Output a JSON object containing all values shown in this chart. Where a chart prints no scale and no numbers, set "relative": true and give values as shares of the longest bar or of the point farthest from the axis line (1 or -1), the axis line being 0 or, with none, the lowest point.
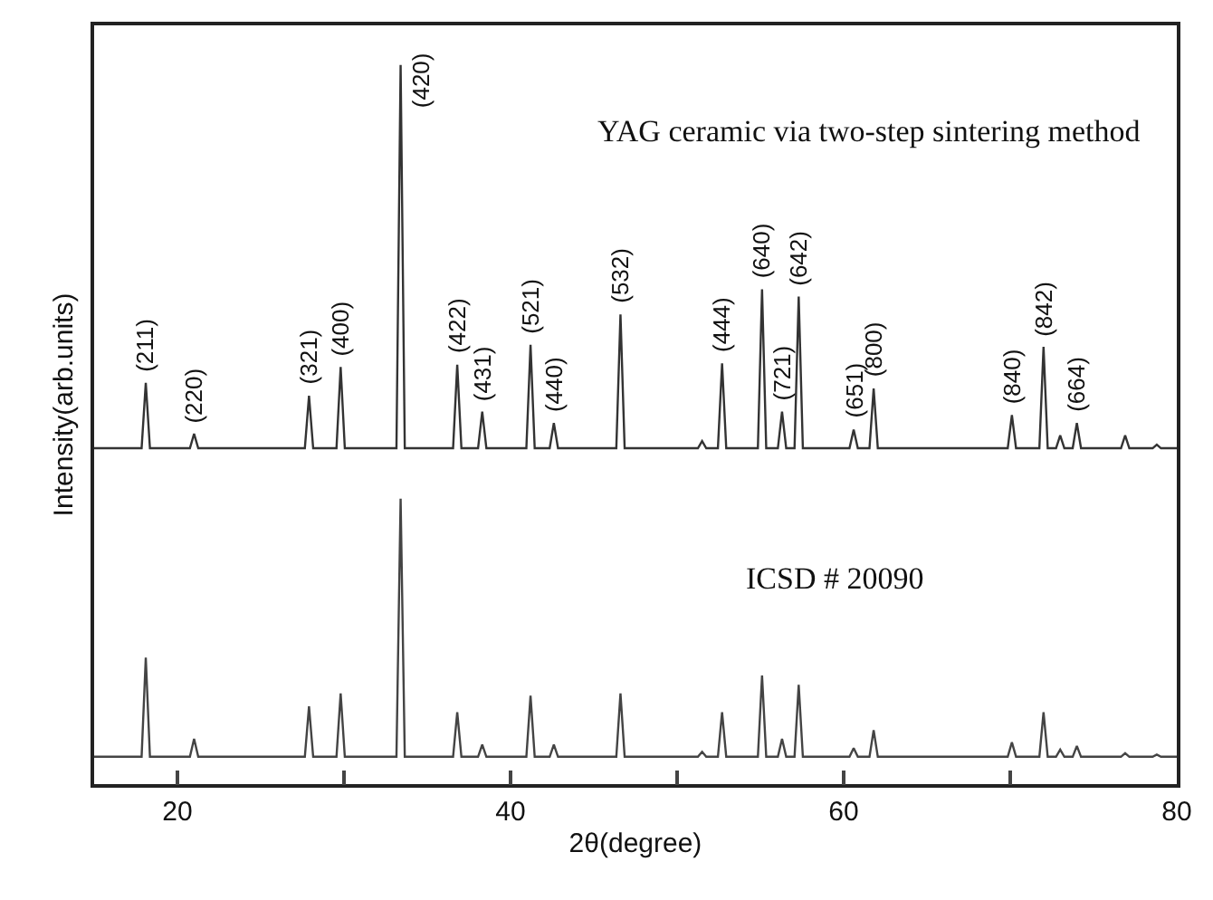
{
  "chart_data": {
    "type": "line",
    "relative": true,
    "xlabel": "2θ(degree)",
    "ylabel": "Intensity(arb.units)",
    "xlim": [
      15,
      80
    ],
    "xticks": [
      20,
      {
        "value": 30,
        "label": null
      },
      40,
      {
        "value": 50,
        "label": null
      },
      60,
      {
        "value": 70,
        "label": null
      },
      80
    ],
    "marker": "none",
    "line_style": "solid",
    "x": [
      15,
      17.85,
      18.1,
      18.35,
      20.75,
      21.0,
      21.25,
      27.65,
      27.9,
      28.15,
      29.55,
      29.8,
      30.05,
      33.15,
      33.4,
      33.65,
      36.55,
      36.8,
      37.05,
      38.05,
      38.3,
      38.55,
      40.95,
      41.2,
      41.45,
      42.35,
      42.6,
      42.85,
      46.35,
      46.6,
      46.85,
      51.25,
      51.5,
      51.75,
      52.45,
      52.7,
      52.95,
      54.85,
      55.1,
      55.35,
      56.05,
      56.3,
      56.55,
      57.05,
      57.3,
      57.55,
      60.35,
      60.6,
      60.85,
      61.55,
      61.8,
      62.05,
      69.85,
      70.1,
      70.35,
      71.75,
      72.0,
      72.25,
      72.75,
      73.0,
      73.25,
      73.75,
      74.0,
      74.25,
      76.65,
      76.9,
      77.15,
      78.55,
      78.8,
      79.05,
      80
    ],
    "series": [
      {
        "color": "#333333",
        "values": [
          0.467,
          0.467,
          0.558,
          0.467,
          0.467,
          0.487,
          0.467,
          0.467,
          0.54,
          0.467,
          0.467,
          0.58,
          0.467,
          0.467,
          1.0,
          0.467,
          0.467,
          0.583,
          0.467,
          0.467,
          0.518,
          0.467,
          0.467,
          0.611,
          0.467,
          0.467,
          0.502,
          0.467,
          0.467,
          0.653,
          0.467,
          0.467,
          0.477,
          0.467,
          0.467,
          0.585,
          0.467,
          0.467,
          0.688,
          0.467,
          0.467,
          0.518,
          0.467,
          0.467,
          0.678,
          0.467,
          0.467,
          0.493,
          0.467,
          0.467,
          0.55,
          0.467,
          0.467,
          0.513,
          0.467,
          0.467,
          0.608,
          0.467,
          0.467,
          0.485,
          0.467,
          0.467,
          0.502,
          0.467,
          0.467,
          0.485,
          0.467,
          0.467,
          0.472,
          0.467,
          0.467
        ]
      },
      {
        "color": "#444444",
        "values": [
          0.038,
          0.038,
          0.176,
          0.038,
          0.038,
          0.063,
          0.038,
          0.038,
          0.108,
          0.038,
          0.038,
          0.126,
          0.038,
          0.038,
          0.397,
          0.038,
          0.038,
          0.1,
          0.038,
          0.038,
          0.055,
          0.038,
          0.038,
          0.123,
          0.038,
          0.038,
          0.055,
          0.038,
          0.038,
          0.126,
          0.038,
          0.038,
          0.045,
          0.038,
          0.038,
          0.1,
          0.038,
          0.038,
          0.151,
          0.038,
          0.038,
          0.063,
          0.038,
          0.038,
          0.138,
          0.038,
          0.038,
          0.05,
          0.038,
          0.038,
          0.075,
          0.038,
          0.038,
          0.058,
          0.038,
          0.038,
          0.1,
          0.038,
          0.038,
          0.048,
          0.038,
          0.038,
          0.053,
          0.038,
          0.038,
          0.043,
          0.038,
          0.038,
          0.041,
          0.038,
          0.038
        ]
      }
    ],
    "annotations": [
      "YAG ceramic via two-step sintering method",
      "ICSD # 20090",
      {
        "text": "(211)",
        "x": 18.1,
        "y": 0.558
      },
      {
        "text": "(220)",
        "x": 21.0,
        "y": 0.487
      },
      {
        "text": "(321)",
        "x": 27.9,
        "y": 0.54
      },
      {
        "text": "(400)",
        "x": 29.8,
        "y": 0.58
      },
      {
        "text": "(420)",
        "x": 33.4,
        "y": 1.0
      },
      {
        "text": "(422)",
        "x": 36.8,
        "y": 0.583
      },
      {
        "text": "(431)",
        "x": 38.3,
        "y": 0.518
      },
      {
        "text": "(521)",
        "x": 41.2,
        "y": 0.611
      },
      {
        "text": "(440)",
        "x": 42.6,
        "y": 0.502
      },
      {
        "text": "(532)",
        "x": 46.6,
        "y": 0.653
      },
      {
        "text": "(444)",
        "x": 52.7,
        "y": 0.585
      },
      {
        "text": "(640)",
        "x": 55.1,
        "y": 0.688
      },
      {
        "text": "(721)",
        "x": 56.3,
        "y": 0.518
      },
      {
        "text": "(642)",
        "x": 57.3,
        "y": 0.678
      },
      {
        "text": "(651)",
        "x": 60.6,
        "y": 0.493
      },
      {
        "text": "(800)",
        "x": 61.8,
        "y": 0.55
      },
      {
        "text": "(840)",
        "x": 70.1,
        "y": 0.513
      },
      {
        "text": "(842)",
        "x": 72.0,
        "y": 0.608
      },
      {
        "text": "(664)",
        "x": 74.0,
        "y": 0.502
      }
    ]
  }
}
